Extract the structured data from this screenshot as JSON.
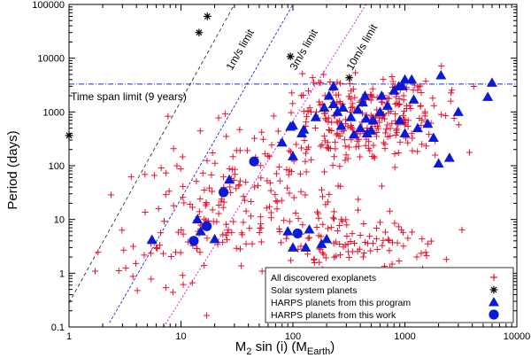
{
  "chart_data": {
    "type": "scatter",
    "title": "",
    "xlabel_main": "M",
    "xlabel_sub1": "2",
    "xlabel_mid": " sin (i)  (M",
    "xlabel_sub2": "Earth",
    "xlabel_end": ")",
    "ylabel": "Period (days)",
    "xscale": "log",
    "yscale": "log",
    "xlim": [
      1,
      10000
    ],
    "ylim": [
      0.1,
      100000
    ],
    "x_ticks": [
      1,
      10,
      100,
      1000,
      10000
    ],
    "x_tick_labels": [
      "1",
      "10",
      "100",
      "1000",
      "10000"
    ],
    "y_ticks": [
      0.1,
      1,
      10,
      100,
      1000,
      10000,
      100000
    ],
    "y_tick_labels": [
      "0.1",
      "1",
      "10",
      "100",
      "1000",
      "10000",
      "100000"
    ],
    "colors": {
      "exoplanets": "#e8112d",
      "solar_system": "#000000",
      "harps": "#0a1ad8",
      "limit_1": "#333333",
      "limit_3": "#1a2ecc",
      "limit_10": "#e000e0",
      "time_span": "#1a2ecc"
    },
    "annotations": {
      "time_span_label": "Time span limit (9 years)",
      "limit_1_label": "1m/s limit",
      "limit_3_label": "3m/s limit",
      "limit_10_label": "10m/s limit"
    },
    "time_span_period": 3300,
    "limit_lines": [
      {
        "name": "1m/s limit",
        "x": [
          1,
          30
        ],
        "y": [
          0.28,
          100000
        ]
      },
      {
        "name": "3m/s limit",
        "x": [
          2.3,
          100
        ],
        "y": [
          0.12,
          100000
        ]
      },
      {
        "name": "10m/s limit",
        "x": [
          7,
          450
        ],
        "y": [
          0.1,
          100000
        ]
      }
    ],
    "legend": [
      {
        "label": "All discovered exoplanets",
        "marker": "plus"
      },
      {
        "label": "Solar system planets",
        "marker": "star"
      },
      {
        "label": "HARPS planets from this program",
        "marker": "triangle"
      },
      {
        "label": "HARPS planets from this work",
        "marker": "circle"
      }
    ],
    "series": [
      {
        "name": "Solar system planets",
        "marker": "star",
        "points": [
          [
            1,
            365
          ],
          [
            14.5,
            30000
          ],
          [
            17.2,
            60000
          ],
          [
            95,
            10750
          ],
          [
            318,
            4330
          ]
        ]
      },
      {
        "name": "HARPS planets from this work",
        "marker": "circle",
        "points": [
          [
            17,
            7.5
          ],
          [
            13,
            4
          ],
          [
            24,
            32
          ],
          [
            45,
            120
          ],
          [
            110,
            5.5
          ]
        ]
      },
      {
        "name": "HARPS planets from this program",
        "marker": "triangle",
        "points": [
          [
            5.5,
            4.2
          ],
          [
            14,
            10
          ],
          [
            15,
            6
          ],
          [
            20,
            4.3
          ],
          [
            27,
            55
          ],
          [
            80,
            270
          ],
          [
            95,
            530
          ],
          [
            100,
            560
          ],
          [
            100,
            150
          ],
          [
            120,
            400
          ],
          [
            125,
            470
          ],
          [
            90,
            6
          ],
          [
            100,
            3
          ],
          [
            130,
            3
          ],
          [
            180,
            3.5
          ],
          [
            140,
            6.5
          ],
          [
            200,
            4.3
          ],
          [
            160,
            800
          ],
          [
            190,
            1200
          ],
          [
            210,
            2000
          ],
          [
            230,
            1400
          ],
          [
            250,
            1000
          ],
          [
            280,
            1200
          ],
          [
            230,
            3000
          ],
          [
            330,
            800
          ],
          [
            350,
            380
          ],
          [
            400,
            500
          ],
          [
            420,
            1500
          ],
          [
            440,
            2000
          ],
          [
            460,
            400
          ],
          [
            500,
            450
          ],
          [
            520,
            700
          ],
          [
            600,
            1000
          ],
          [
            800,
            2500
          ],
          [
            880,
            3000
          ],
          [
            900,
            700
          ],
          [
            950,
            3000
          ],
          [
            1000,
            400
          ],
          [
            1000,
            4000
          ],
          [
            1150,
            4000
          ],
          [
            1200,
            1700
          ],
          [
            1300,
            500
          ],
          [
            1600,
            600
          ],
          [
            1800,
            330
          ],
          [
            2000,
            110
          ],
          [
            2100,
            4800
          ],
          [
            3000,
            1000
          ],
          [
            5500,
            1900
          ],
          [
            6000,
            3500
          ],
          [
            2500,
            140
          ],
          [
            700,
            1300
          ],
          [
            450,
            750
          ],
          [
            380,
            1100
          ],
          [
            270,
            550
          ],
          [
            620,
            2000
          ]
        ]
      }
    ],
    "scatter_seed": 7
  }
}
